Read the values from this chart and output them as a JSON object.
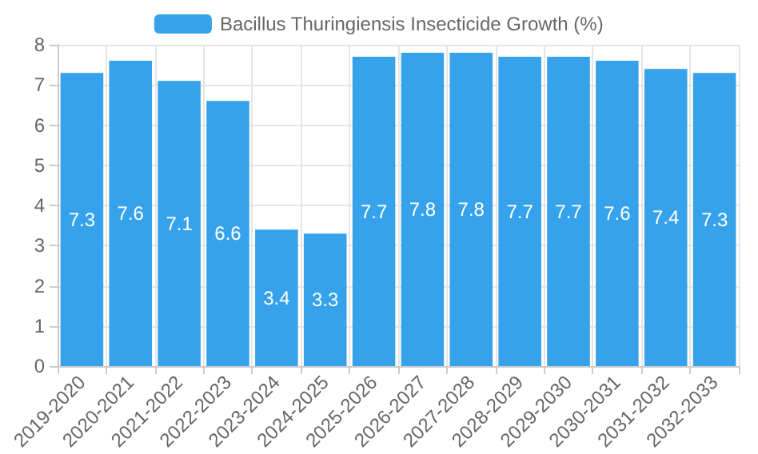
{
  "chart_data": {
    "type": "bar",
    "categories": [
      "2019-2020",
      "2020-2021",
      "2021-2022",
      "2022-2023",
      "2023-2024",
      "2024-2025",
      "2025-2026",
      "2026-2027",
      "2027-2028",
      "2028-2029",
      "2029-2030",
      "2030-2031",
      "2031-2032",
      "2032-2033"
    ],
    "series": [
      {
        "name": "Bacillus Thuringiensis Insecticide Growth (%)",
        "color": "#36a2eb",
        "values": [
          7.3,
          7.6,
          7.1,
          6.6,
          3.4,
          3.3,
          7.7,
          7.8,
          7.8,
          7.7,
          7.7,
          7.6,
          7.4,
          7.3
        ]
      }
    ],
    "ylim": [
      0,
      8
    ],
    "yticks": [
      0,
      1,
      2,
      3,
      4,
      5,
      6,
      7,
      8
    ],
    "grid": true,
    "legend": "top",
    "data_labels": true
  }
}
